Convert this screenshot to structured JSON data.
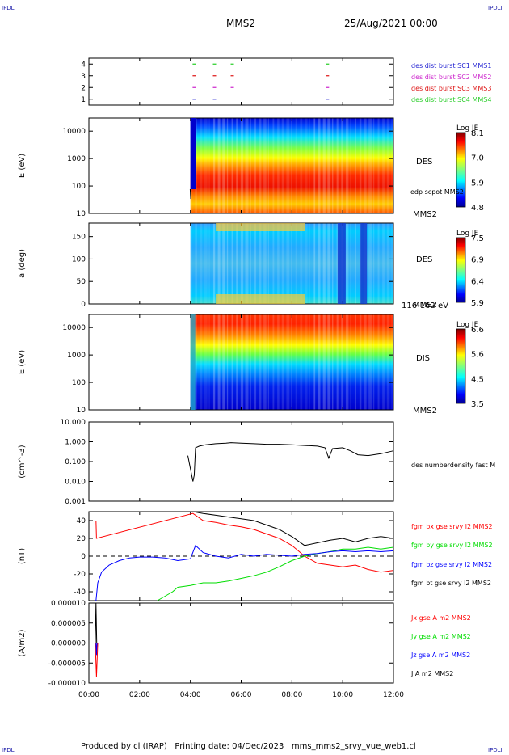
{
  "header": {
    "corner_label": "IPDLI",
    "title": "MMS2",
    "date": "25/Aug/2021 00:00"
  },
  "footer": {
    "produced_by": "Produced by cl (IRAP)",
    "printing_date": "Printing date: 04/Dec/2023",
    "filename": "mms_mms2_srvy_vue_web1.cl"
  },
  "time_axis": {
    "ticks": [
      "00:00",
      "02:00",
      "04:00",
      "06:00",
      "08:00",
      "10:00",
      "12:00"
    ],
    "range_hours": [
      0,
      12
    ]
  },
  "colors": {
    "mms1": "#1b1bd0",
    "mms2": "#cc22cc",
    "mms3": "#dd1111",
    "mms4": "#22cc22",
    "bx": "#ff0000",
    "by": "#00dd00",
    "bz": "#0000ff",
    "bt": "#000000"
  },
  "chart_data": [
    {
      "type": "scatter",
      "panel": "availability",
      "y_ticks": [
        "1",
        "2",
        "3",
        "4"
      ],
      "ylim": [
        0.5,
        4.5
      ],
      "series": [
        {
          "name": "des dist burst SC1 MMS1",
          "level": 1,
          "x": [
            4.15,
            4.95,
            9.4
          ]
        },
        {
          "name": "des dist burst SC2 MMS2",
          "level": 2,
          "x": [
            4.15,
            4.95,
            5.65,
            9.4
          ]
        },
        {
          "name": "des dist burst SC3 MMS3",
          "level": 3,
          "x": [
            4.15,
            4.95,
            5.65,
            9.4
          ]
        },
        {
          "name": "des dist burst SC4 MMS4",
          "level": 4,
          "x": [
            4.15,
            4.95,
            5.65,
            9.4
          ]
        }
      ]
    },
    {
      "type": "heatmap",
      "panel": "des-energy",
      "ylabel": "E (eV)",
      "y_ticks": [
        "10",
        "100",
        "1000",
        "10000"
      ],
      "ylim": [
        10,
        30000
      ],
      "log_y": true,
      "data_start_hour": 4.0,
      "label": "DES",
      "overlay_label": "edp scpot MMS2",
      "sc_label": "MMS2",
      "colorbar": {
        "title": "Log JE",
        "ticks": [
          "8.1",
          "7.0",
          "5.9",
          "4.8"
        ]
      }
    },
    {
      "type": "heatmap",
      "panel": "des-pitch-angle",
      "ylabel": "a (deg)",
      "y_ticks": [
        "0",
        "50",
        "100",
        "150"
      ],
      "ylim": [
        0,
        180
      ],
      "data_start_hour": 4.0,
      "label": "DES",
      "sc_label": "MMS2",
      "energy_label": "116-162 eV",
      "colorbar": {
        "title": "Log JE",
        "ticks": [
          "7.5",
          "6.9",
          "6.4",
          "5.9"
        ]
      }
    },
    {
      "type": "heatmap",
      "panel": "dis-energy",
      "ylabel": "E (eV)",
      "y_ticks": [
        "10",
        "100",
        "1000",
        "10000"
      ],
      "ylim": [
        10,
        30000
      ],
      "log_y": true,
      "data_start_hour": 4.0,
      "label": "DIS",
      "sc_label": "MMS2",
      "colorbar": {
        "title": "Log JE",
        "ticks": [
          "6.6",
          "5.6",
          "4.5",
          "3.5"
        ]
      }
    },
    {
      "type": "line",
      "panel": "density",
      "ylabel": "(cm^-3)",
      "y_ticks": [
        "0.001",
        "0.010",
        "0.100",
        "1.000",
        "10.000"
      ],
      "ylim": [
        0.001,
        10
      ],
      "log_y": true,
      "series": [
        {
          "name": "des numberdensity fast M",
          "x": [
            3.9,
            4.1,
            4.15,
            4.2,
            4.35,
            4.6,
            5.0,
            5.4,
            5.6,
            6.0,
            6.5,
            7.0,
            7.5,
            8.0,
            8.5,
            9.0,
            9.3,
            9.45,
            9.6,
            10.0,
            10.3,
            10.6,
            11.0,
            11.5,
            12.0
          ],
          "y": [
            0.2,
            0.01,
            0.02,
            0.5,
            0.6,
            0.7,
            0.8,
            0.85,
            0.9,
            0.85,
            0.8,
            0.75,
            0.75,
            0.7,
            0.65,
            0.6,
            0.5,
            0.15,
            0.45,
            0.5,
            0.35,
            0.22,
            0.2,
            0.25,
            0.35
          ]
        }
      ]
    },
    {
      "type": "line",
      "panel": "magnetic-field",
      "ylabel": "(nT)",
      "y_ticks": [
        "-40",
        "-20",
        "0",
        "20",
        "40"
      ],
      "ylim": [
        -50,
        50
      ],
      "series": [
        {
          "name": "fgm bx gse srvy l2 MMS2",
          "x": [
            0.28,
            0.3,
            4.1,
            4.5,
            5.0,
            5.5,
            6.0,
            6.5,
            7.0,
            7.5,
            8.0,
            8.5,
            9.0,
            9.5,
            10.0,
            10.5,
            11.0,
            11.5,
            12.0
          ],
          "y": [
            40,
            20,
            48,
            40,
            38,
            35,
            33,
            30,
            25,
            20,
            12,
            0,
            -8,
            -10,
            -12,
            -10,
            -15,
            -18,
            -16
          ]
        },
        {
          "name": "fgm by gse srvy l2 MMS2",
          "x": [
            2.7,
            3.0,
            3.3,
            3.5,
            4.0,
            4.5,
            5.0,
            5.5,
            6.0,
            6.5,
            7.0,
            7.5,
            8.0,
            8.5,
            9.0,
            9.5,
            10.0,
            10.5,
            11.0,
            11.5,
            12.0
          ],
          "y": [
            -50,
            -45,
            -40,
            -35,
            -33,
            -30,
            -30,
            -28,
            -25,
            -22,
            -18,
            -12,
            -5,
            0,
            3,
            5,
            8,
            8,
            10,
            8,
            10
          ]
        },
        {
          "name": "fgm bz gse srvy l2 MMS2",
          "x": [
            0.28,
            0.35,
            0.5,
            0.8,
            1.2,
            1.6,
            2.0,
            2.5,
            3.0,
            3.5,
            4.0,
            4.2,
            4.5,
            5.0,
            5.5,
            6.0,
            6.5,
            7.0,
            7.5,
            8.0,
            8.5,
            9.0,
            9.5,
            10.0,
            10.5,
            11.0,
            11.5,
            12.0
          ],
          "y": [
            -50,
            -30,
            -18,
            -10,
            -5,
            -2,
            -1,
            -1,
            -2,
            -5,
            -3,
            12,
            4,
            0,
            -2,
            2,
            0,
            2,
            1,
            0,
            2,
            3,
            5,
            6,
            5,
            6,
            5,
            6
          ]
        },
        {
          "name": "fgm bt gse srvy l2 MMS2",
          "x": [
            4.1,
            4.5,
            5.0,
            5.5,
            6.0,
            6.5,
            7.0,
            7.5,
            8.0,
            8.5,
            9.0,
            9.5,
            10.0,
            10.5,
            11.0,
            11.5,
            12.0
          ],
          "y": [
            50,
            48,
            46,
            44,
            42,
            40,
            35,
            30,
            22,
            12,
            15,
            18,
            20,
            16,
            20,
            22,
            20
          ]
        }
      ]
    },
    {
      "type": "line",
      "panel": "current-density",
      "ylabel": "(A/m2)",
      "y_ticks": [
        "-0.000010",
        "-0.000005",
        "0.000000",
        "0.000005",
        "0.000010"
      ],
      "ylim": [
        -1e-05,
        1e-05
      ],
      "series": [
        {
          "name": "Jx gse A m2 MMS2",
          "x": [
            0.0,
            0.25,
            0.3,
            0.35,
            12.0
          ],
          "y": [
            0,
            0,
            -8.5e-06,
            0,
            0
          ]
        },
        {
          "name": "Jy gse A m2 MMS2",
          "x": [
            0.0,
            12.0
          ],
          "y": [
            0,
            0
          ]
        },
        {
          "name": "Jz gse A m2 MMS2",
          "x": [
            0.0,
            0.28,
            0.3,
            0.32,
            12.0
          ],
          "y": [
            0,
            0,
            -3e-06,
            0,
            0
          ]
        },
        {
          "name": "J A m2 MMS2",
          "x": [
            0.0,
            0.25,
            0.28,
            0.31,
            12.0
          ],
          "y": [
            0,
            0,
            1e-05,
            0,
            0
          ]
        }
      ]
    }
  ]
}
